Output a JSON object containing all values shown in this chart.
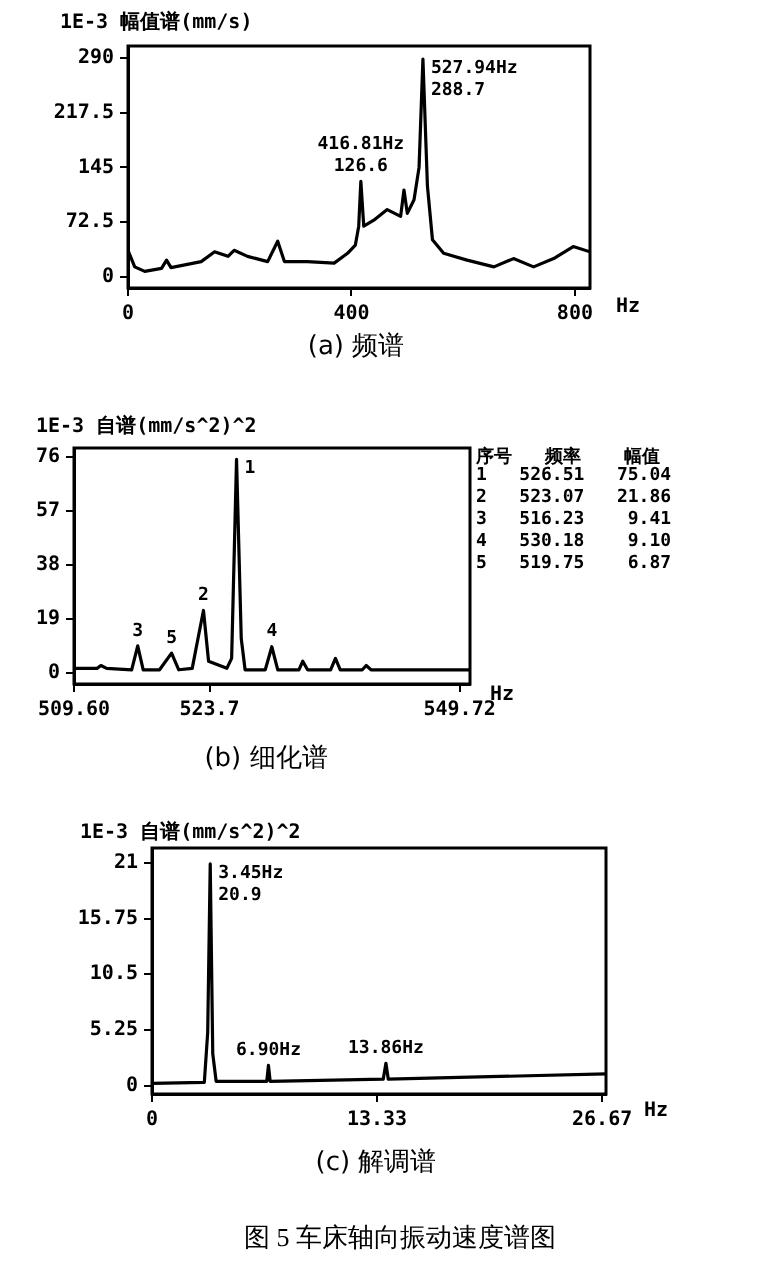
{
  "chart_data": [
    {
      "type": "line",
      "title": "(a)  频谱",
      "ylabel": "1E-3  幅值谱(mm/s)",
      "xlabel": "Hz",
      "color": "#000000",
      "x": [
        0,
        12,
        30,
        60,
        69,
        77,
        131,
        155,
        179,
        190,
        214,
        250,
        268,
        280,
        321,
        369,
        393,
        407,
        413,
        416.81,
        422,
        440,
        464,
        488,
        494,
        500,
        512,
        521,
        527.94,
        536,
        545,
        565,
        607,
        655,
        690,
        726,
        762,
        797,
        827
      ],
      "values": [
        35,
        13,
        7,
        11,
        22,
        12,
        20,
        33,
        27,
        35,
        27,
        20,
        47,
        20,
        20,
        18,
        31,
        42,
        67,
        126.6,
        67,
        75,
        89,
        80,
        115,
        84,
        102,
        145,
        288.7,
        120,
        49,
        31,
        22,
        13,
        24,
        13,
        24,
        40,
        33
      ],
      "xlim": [
        0,
        827
      ],
      "xticks": [
        0,
        400,
        800
      ],
      "ylim": [
        -15,
        306
      ],
      "yticks": [
        0,
        72.5,
        145,
        217.5,
        290
      ],
      "grid": false,
      "legend": false,
      "annotations": [
        {
          "text": "416.81Hz",
          "x": 416.81,
          "y": 126.6
        },
        {
          "text": "126.6",
          "x": 416.81,
          "y": 126.6
        },
        {
          "text": "527.94Hz",
          "x": 527.94,
          "y": 288.7
        },
        {
          "text": "288.7",
          "x": 527.94,
          "y": 288.7
        }
      ]
    },
    {
      "type": "line",
      "title": "(b)  细化谱",
      "ylabel": "1E-3  自谱(mm/s^2)^2",
      "xlabel": "Hz",
      "color": "#000000",
      "x": [
        509.6,
        512,
        512.4,
        513,
        515.6,
        516.23,
        516.8,
        518.5,
        519.75,
        520.5,
        521.9,
        522.5,
        523.07,
        523.6,
        525.5,
        526,
        526.51,
        527,
        527.4,
        529.5,
        530.18,
        530.8,
        533,
        533.4,
        533.9,
        536.3,
        536.8,
        537.3,
        539.6,
        540,
        540.5,
        550.8
      ],
      "values": [
        1.5,
        1.5,
        2.5,
        1.5,
        1,
        9.41,
        1,
        1,
        6.87,
        1,
        1.5,
        12,
        21.86,
        4,
        1.5,
        5,
        75.04,
        12,
        1,
        1,
        9.1,
        1,
        1,
        4,
        1,
        1,
        5,
        1,
        1,
        2.5,
        1,
        1
      ],
      "xlim": [
        509.6,
        550.8
      ],
      "xticks": [
        {
          "value": 509.6,
          "label": "509.60"
        },
        523.7,
        549.72
      ],
      "ylim": [
        -4,
        79
      ],
      "yticks": [
        0,
        19,
        38,
        57,
        76
      ],
      "grid": false,
      "legend": false,
      "annotations": [
        "序号   频率    幅值",
        "1   526.51   75.04",
        "2   523.07   21.86",
        "3   516.23    9.41",
        "4   530.18    9.10",
        "5   519.75    6.87",
        {
          "text": "1",
          "x": 526.51,
          "y": 75.04
        },
        {
          "text": "2",
          "x": 523.07,
          "y": 21.86
        },
        {
          "text": "3",
          "x": 516.23,
          "y": 9.41
        },
        {
          "text": "4",
          "x": 530.18,
          "y": 9.1
        },
        {
          "text": "5",
          "x": 519.75,
          "y": 6.87
        }
      ]
    },
    {
      "type": "line",
      "title": "(c)  解调谱",
      "ylabel": "1E-3  自谱(mm/s^2)^2",
      "xlabel": "Hz",
      "color": "#000000",
      "x": [
        0,
        3.1,
        3.3,
        3.45,
        3.6,
        3.8,
        6.8,
        6.9,
        7,
        13.7,
        13.86,
        14,
        26.9
      ],
      "values": [
        0.2,
        0.3,
        5,
        20.9,
        3,
        0.4,
        0.4,
        1.9,
        0.4,
        0.6,
        2.1,
        0.6,
        1.1
      ],
      "xlim": [
        0,
        26.9
      ],
      "xticks": [
        0,
        13.33,
        26.67
      ],
      "ylim": [
        -0.8,
        22.4
      ],
      "yticks": [
        0,
        5.25,
        10.5,
        15.75,
        21
      ],
      "grid": false,
      "legend": false,
      "annotations": [
        {
          "text": "3.45Hz",
          "x": 3.45,
          "y": 20.9
        },
        {
          "text": "20.9",
          "x": 3.45,
          "y": 20.9
        },
        {
          "text": "6.90Hz",
          "x": 6.9,
          "y": 1.9
        },
        {
          "text": "13.86Hz",
          "x": 13.86,
          "y": 2.1
        },
        "图 5   车床轴向振动速度谱图"
      ]
    }
  ]
}
